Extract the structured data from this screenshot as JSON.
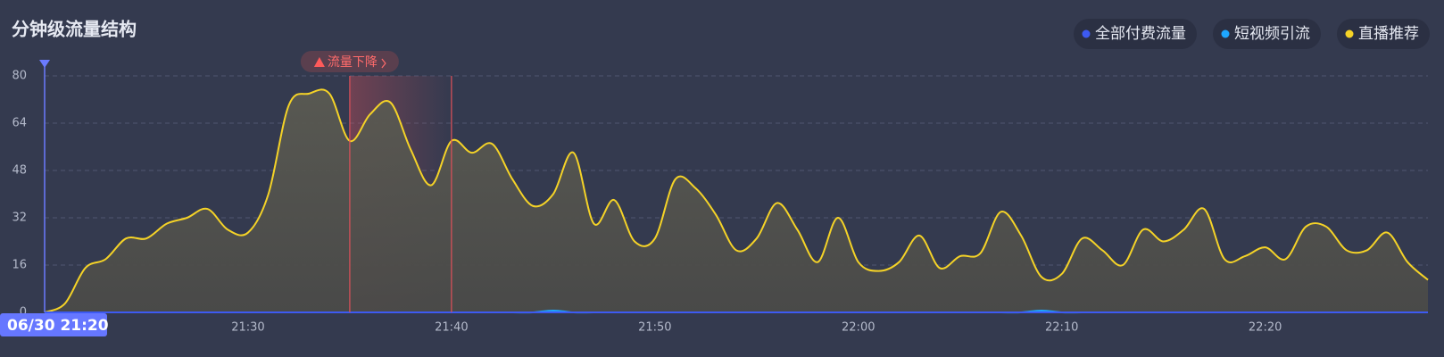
{
  "chart_data": {
    "type": "area-line",
    "title": "分钟级流量结构",
    "cursor_label": "06/30 21:20",
    "annotation": "流量下降",
    "alert_start": 15,
    "alert_end": 20,
    "categories": [
      null,
      null,
      null,
      null,
      null,
      null,
      null,
      null,
      null,
      null,
      "21:30",
      null,
      null,
      null,
      null,
      null,
      null,
      null,
      null,
      null,
      "21:40",
      null,
      null,
      null,
      null,
      null,
      null,
      null,
      null,
      null,
      "21:50",
      null,
      null,
      null,
      null,
      null,
      null,
      null,
      null,
      null,
      "22:00",
      null,
      null,
      null,
      null,
      null,
      null,
      null,
      null,
      null,
      "22:10",
      null,
      null,
      null,
      null,
      null,
      null,
      null,
      null,
      null,
      "22:20",
      null,
      null,
      null,
      null,
      null,
      null,
      null,
      null
    ],
    "series": [
      {
        "name": "全部付费流量",
        "color": "#3d5af1",
        "values": [
          0,
          0,
          0,
          0,
          0,
          0,
          0,
          0,
          0,
          0,
          0,
          0,
          0,
          0,
          0,
          0,
          0,
          0,
          0,
          0,
          0,
          0,
          0,
          0,
          0,
          0,
          0,
          0,
          0,
          0,
          0,
          0,
          0,
          0,
          0,
          0,
          0,
          0,
          0,
          0,
          0,
          0,
          0,
          0,
          0,
          0,
          0,
          0,
          0,
          0,
          0,
          0,
          0,
          0,
          0,
          0,
          0,
          0,
          0,
          0,
          0,
          0,
          0,
          0,
          0,
          0,
          0,
          0,
          0
        ]
      },
      {
        "name": "短视频引流",
        "color": "#1ea7ff",
        "values": [
          0,
          0,
          0,
          0,
          0,
          0,
          0,
          0,
          0,
          0,
          0,
          0,
          0,
          0,
          0,
          0,
          0,
          0,
          0,
          0,
          0,
          0,
          0,
          0,
          0,
          0.6,
          0,
          0,
          0,
          0,
          0,
          0,
          0,
          0,
          0,
          0,
          0,
          0,
          0,
          0,
          0,
          0,
          0,
          0,
          0,
          0,
          0,
          0,
          0,
          0.6,
          0,
          0,
          0,
          0,
          0,
          0,
          0,
          0,
          0,
          0,
          0,
          0,
          0,
          0,
          0,
          0,
          0,
          0,
          0
        ]
      },
      {
        "name": "直播推荐",
        "color": "#f5d327",
        "values": [
          0,
          3,
          15,
          18,
          25,
          25,
          30,
          32,
          35,
          28,
          27,
          40,
          70,
          74,
          74,
          58,
          67,
          71,
          55,
          43,
          58,
          54,
          57,
          45,
          36,
          40,
          54,
          30,
          38,
          24,
          25,
          45,
          42,
          33,
          21,
          25,
          37,
          28,
          17,
          32,
          17,
          14,
          17,
          26,
          15,
          19,
          20,
          34,
          26,
          12,
          13,
          25,
          21,
          16,
          28,
          24,
          28,
          35,
          18,
          19,
          22,
          18,
          29,
          29,
          21,
          21,
          27,
          17,
          11
        ]
      }
    ],
    "ylim": [
      0,
      80
    ],
    "yticks": [
      0,
      16,
      32,
      48,
      64,
      80
    ],
    "grid": true
  }
}
